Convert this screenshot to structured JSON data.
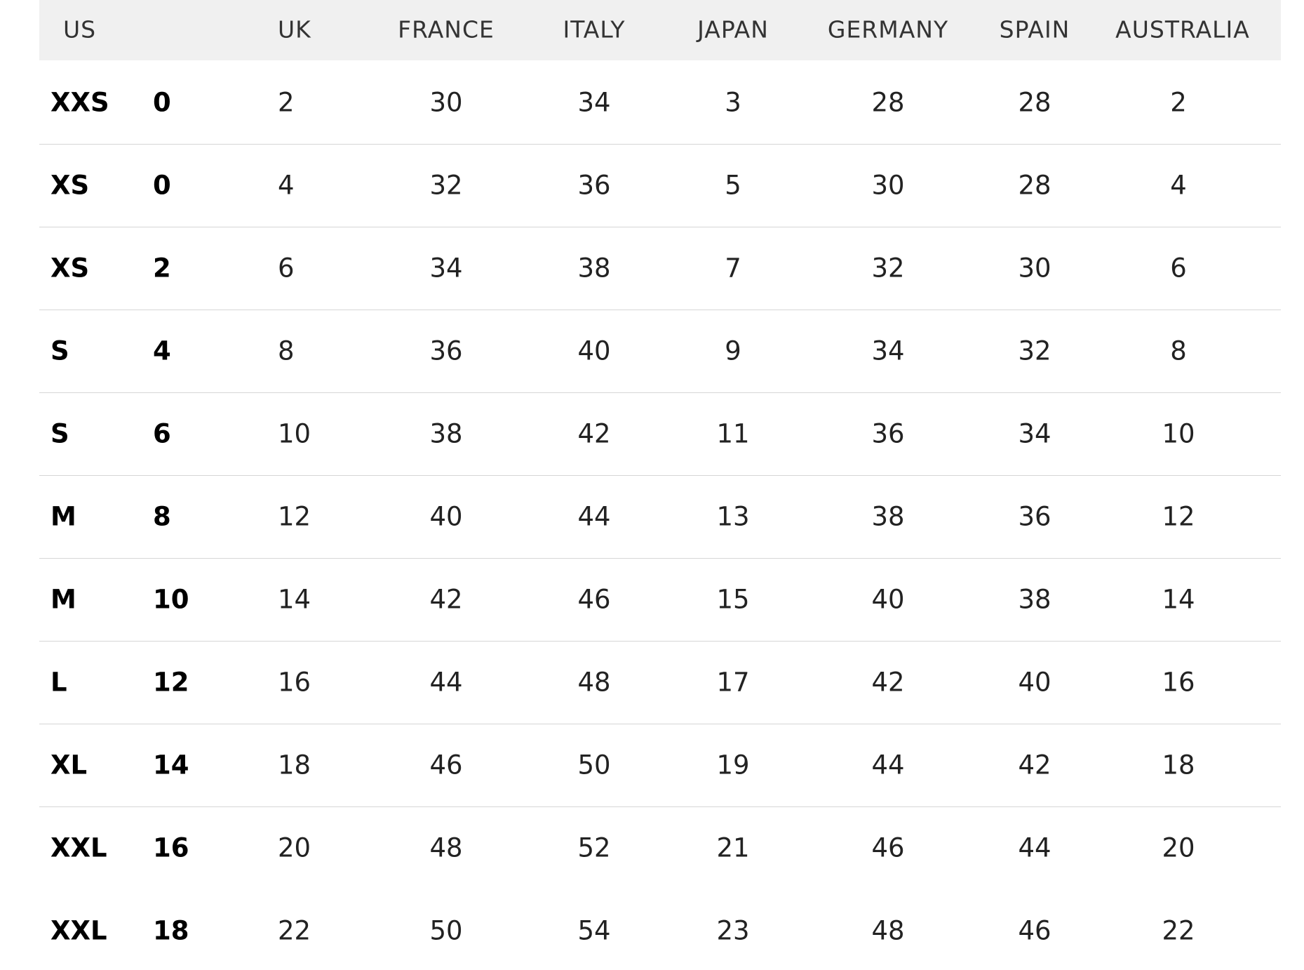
{
  "table": {
    "header": [
      "US",
      "UK",
      "FRANCE",
      "ITALY",
      "JAPAN",
      "GERMANY",
      "SPAIN",
      "AUSTRALIA"
    ],
    "rows": [
      [
        "XXS",
        0,
        2,
        30,
        34,
        3,
        28,
        28,
        2
      ],
      [
        "XS",
        0,
        4,
        32,
        36,
        5,
        30,
        28,
        4
      ],
      [
        "XS",
        2,
        6,
        34,
        38,
        7,
        32,
        30,
        6
      ],
      [
        "S",
        4,
        8,
        36,
        40,
        9,
        34,
        32,
        8
      ],
      [
        "S",
        6,
        10,
        38,
        42,
        11,
        36,
        34,
        10
      ],
      [
        "M",
        8,
        12,
        40,
        44,
        13,
        38,
        36,
        12
      ],
      [
        "M",
        10,
        14,
        42,
        46,
        15,
        40,
        38,
        14
      ],
      [
        "L",
        12,
        16,
        44,
        48,
        17,
        42,
        40,
        16
      ],
      [
        "XL",
        14,
        18,
        46,
        50,
        19,
        44,
        42,
        18
      ],
      [
        "XXL",
        16,
        20,
        48,
        52,
        21,
        46,
        44,
        20
      ],
      [
        "XXL",
        18,
        22,
        50,
        54,
        23,
        48,
        46,
        22
      ]
    ]
  }
}
